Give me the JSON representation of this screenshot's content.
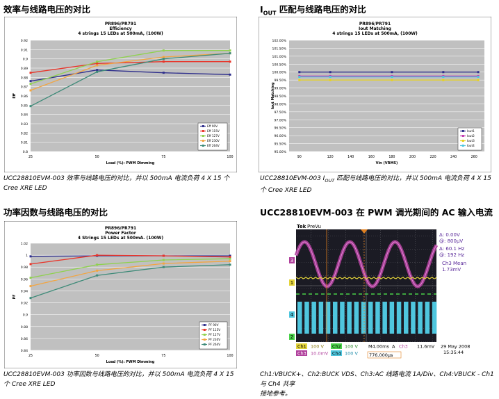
{
  "sections": {
    "eff_title": "效率与线路电压的对比",
    "iout_title_pre": "I",
    "iout_title_sub": "OUT",
    "iout_title_post": " 匹配与线路电压的对比",
    "pf_title": "功率因数与线路电压的对比",
    "ac_title": "UCC28810EVM-003 在 PWM 调光期间的 AC 输入电流"
  },
  "captions": {
    "eff": "UCC28810EVM-003 效率与线路电压的对比，并以 500mA 电流负荷 4 X 15 个 Cree XRE LED",
    "iout_pre": "UCC28810EVM-003 I",
    "iout_sub": "OUT",
    "iout_post": " 匹配与线路电压的对比，并以 500mA 电流负荷 4 X 15 个 Cree XRE LED",
    "pf": "UCC28810EVM-003 功率因数与线路电压的对比，并以 500mA 电流负荷 4 X 15 个 Cree XRE LED",
    "ac_line1": "Ch1:VBUCK+、Ch2:BUCK VDS、Ch3:AC 线路电流 1A/Div、Ch4:VBUCK - Ch1 与 Ch4 共享",
    "ac_line2": "接地参考。"
  },
  "chart_data": [
    {
      "type": "line",
      "title": "PR896/PR791",
      "subtitle": "Efficiency",
      "subtitle2": "4 strings 15 LEDs at 500mA, (100W)",
      "xlabel": "Load (%): PWM Dimming",
      "ylabel": "Eff",
      "x": [
        25,
        50,
        75,
        100
      ],
      "xticks": [
        "25",
        "50",
        "75",
        "100"
      ],
      "ylim": [
        0.8,
        0.92
      ],
      "yticks": [
        "0.8",
        "0.81",
        "0.82",
        "0.83",
        "0.84",
        "0.85",
        "0.86",
        "0.87",
        "0.88",
        "0.89",
        "0.9",
        "0.91",
        "0.92"
      ],
      "legend": "bottom-right",
      "series": [
        {
          "name": "Eff 90V",
          "color": "#2e2e8c",
          "values": [
            0.876,
            0.888,
            0.885,
            0.883
          ]
        },
        {
          "name": "Eff 115V",
          "color": "#e8352a",
          "values": [
            0.885,
            0.895,
            0.897,
            0.897
          ]
        },
        {
          "name": "Eff 127V",
          "color": "#8fd14f",
          "values": [
            0.873,
            0.897,
            0.909,
            0.909
          ]
        },
        {
          "name": "Eff 230V",
          "color": "#f2a541",
          "values": [
            0.866,
            0.893,
            0.902,
            0.906
          ]
        },
        {
          "name": "Eff 264V",
          "color": "#3d8a78",
          "values": [
            0.849,
            0.886,
            0.9,
            0.906
          ]
        }
      ]
    },
    {
      "type": "line",
      "title": "PR896/PR791",
      "subtitle": "Iout Matching",
      "subtitle2": "4 strings 15 LEDs at 500mA, (100W)",
      "xlabel": "Vin (VRMS)",
      "ylabel": "Iout Matching",
      "x": [
        90,
        120,
        180,
        230,
        264
      ],
      "xticks": [
        "90",
        "120",
        "140",
        "160",
        "180",
        "200",
        "220",
        "240",
        "260"
      ],
      "ylim": [
        95.0,
        102.0
      ],
      "yticks": [
        "95.00%",
        "95.50%",
        "96.00%",
        "96.50%",
        "97.00%",
        "97.50%",
        "98.00%",
        "98.50%",
        "99.00%",
        "99.50%",
        "100.00%",
        "100.50%",
        "101.00%",
        "101.50%",
        "102.00%"
      ],
      "legend": "bottom-right",
      "series": [
        {
          "name": "Iout1",
          "color": "#2e2e8c",
          "values": [
            100.0,
            100.0,
            100.0,
            100.0,
            100.0
          ]
        },
        {
          "name": "Iout2",
          "color": "#c23bb0",
          "values": [
            99.75,
            99.75,
            99.75,
            99.75,
            99.75
          ]
        },
        {
          "name": "Iout3",
          "color": "#e8d21c",
          "values": [
            99.5,
            99.5,
            99.5,
            99.5,
            99.5
          ]
        },
        {
          "name": "Iout4",
          "color": "#4fc6de",
          "values": [
            99.7,
            99.7,
            99.7,
            99.7,
            99.7
          ]
        }
      ]
    },
    {
      "type": "line",
      "title": "PR896/PR791",
      "subtitle": "Power Factor",
      "subtitle2": "4 Strings 15 LEDs at 500mA. (100W)",
      "xlabel": "Load (%): PWM Dimming",
      "ylabel": "PF",
      "x": [
        25,
        50,
        75,
        100
      ],
      "xticks": [
        "25",
        "50",
        "75",
        "100"
      ],
      "ylim": [
        0.84,
        1.02
      ],
      "yticks": [
        "0.84",
        "0.86",
        "0.88",
        "0.9",
        "0.92",
        "0.94",
        "0.96",
        "0.98",
        "1",
        "1.02"
      ],
      "legend": "bottom-right",
      "series": [
        {
          "name": "PF 90V",
          "color": "#2e2e8c",
          "values": [
            0.998,
            0.999,
            0.999,
            0.999
          ]
        },
        {
          "name": "PF 115V",
          "color": "#e8352a",
          "values": [
            0.985,
            1.0,
            0.999,
            0.997
          ]
        },
        {
          "name": "PF 127V",
          "color": "#8fd14f",
          "values": [
            0.962,
            0.984,
            0.992,
            0.994
          ]
        },
        {
          "name": "PF 230V",
          "color": "#f2a541",
          "values": [
            0.948,
            0.974,
            0.986,
            0.99
          ]
        },
        {
          "name": "PF 264V",
          "color": "#3d8a78",
          "values": [
            0.928,
            0.966,
            0.98,
            0.984
          ]
        }
      ]
    }
  ],
  "scope": {
    "brand": "Tek",
    "mode": "PreVu",
    "delta_a": "Δ:  0.00V",
    "at_a": "@:  800µV",
    "delta_f": "Δ:  60.1 Hz",
    "at_f": "@:  192 Hz",
    "meas_label": "Ch3 Mean",
    "meas_value": "1.73mV",
    "ch1_label": "Ch1",
    "ch1_scale": "100 V",
    "ch2_label": "Ch2",
    "ch2_scale": "100 V",
    "timebase": "M4.00ms",
    "trig_label": "A",
    "trig_ch": "Ch3",
    "trig_level": "11.6mV",
    "ch3_label": "Ch3",
    "ch3_scale": "10.0mV",
    "ch4_label": "Ch4",
    "ch4_scale": "100 V",
    "cursor_time": "776.000µs",
    "date": "29 May 2008",
    "time": "15:35:44",
    "marker_1": "1",
    "marker_3": "3",
    "marker_4": "4",
    "marker_2": "2"
  }
}
